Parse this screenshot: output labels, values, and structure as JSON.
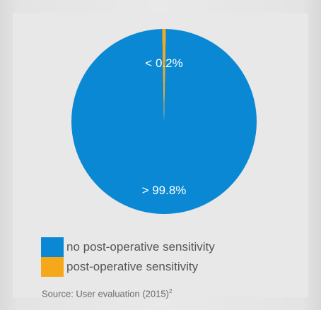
{
  "chart_data": {
    "type": "pie",
    "title": "",
    "slices": [
      {
        "name": "no post-operative sensitivity",
        "value": 99.8,
        "label": "> 99.8%",
        "color": "#0a88d3"
      },
      {
        "name": "post-operative sensitivity",
        "value": 0.2,
        "label": "< 0.2%",
        "color": "#f6a81b"
      }
    ],
    "legend_position": "bottom-left"
  },
  "legend": {
    "items": [
      {
        "label": "no post-operative sensitivity",
        "color": "#0a88d3"
      },
      {
        "label": "post-operative sensitivity",
        "color": "#f6a81b"
      }
    ]
  },
  "source": {
    "text": "Source: User evaluation (2015)",
    "superscript": "2"
  }
}
